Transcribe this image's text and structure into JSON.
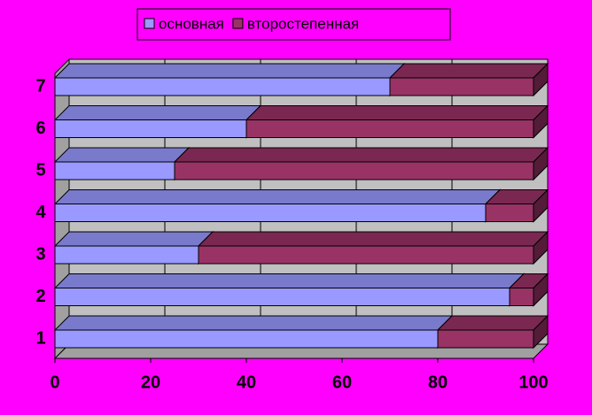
{
  "chart_data": {
    "type": "bar",
    "orientation": "horizontal",
    "stacked": true,
    "categories": [
      "1",
      "2",
      "3",
      "4",
      "5",
      "6",
      "7"
    ],
    "series": [
      {
        "name": "основная",
        "color": "#9999ff",
        "values": [
          80,
          95,
          30,
          90,
          25,
          40,
          70
        ]
      },
      {
        "name": "второстепенная",
        "color": "#993366",
        "values": [
          20,
          5,
          70,
          10,
          75,
          60,
          30
        ]
      }
    ],
    "xlim": [
      0,
      100
    ],
    "xticks": [
      0,
      20,
      40,
      60,
      80,
      100
    ],
    "grid": true,
    "legend": "top"
  }
}
